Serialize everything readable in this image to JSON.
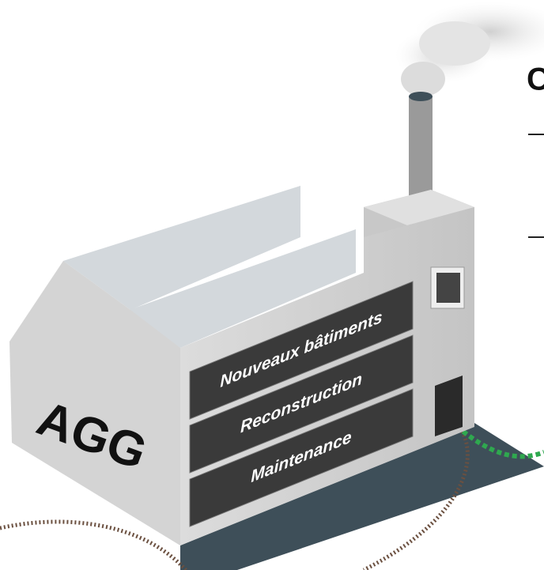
{
  "heading_fragment": "C",
  "factory": {
    "label": "AGG",
    "sections": [
      "Nouveaux bâtiments",
      "Reconstruction",
      "Maintenance"
    ]
  }
}
